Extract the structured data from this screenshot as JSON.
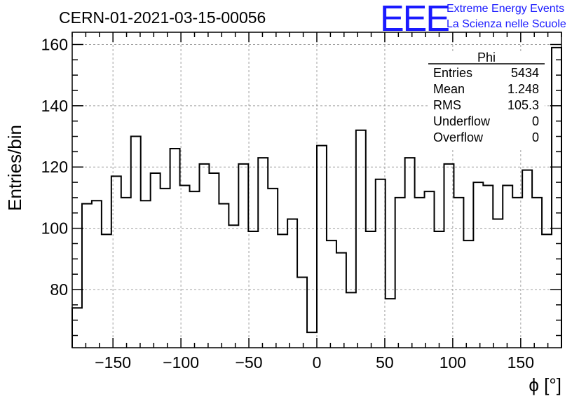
{
  "title": "CERN-01-2021-03-15-00056",
  "logo": {
    "mark": "EEE",
    "line1": "Extreme Energy Events",
    "line2": "La Scienza nelle Scuole",
    "color": "#1a1aff"
  },
  "stats_box": {
    "name": "Phi",
    "rows": [
      {
        "label": "Entries",
        "value": "5434"
      },
      {
        "label": "Mean",
        "value": "1.248"
      },
      {
        "label": "RMS",
        "value": "105.3"
      },
      {
        "label": "Underflow",
        "value": "0"
      },
      {
        "label": "Overflow",
        "value": "0"
      }
    ]
  },
  "chart_data": {
    "type": "histogram",
    "title": "CERN-01-2021-03-15-00056",
    "xlabel": "ϕ [°]",
    "ylabel": "Entries/bin",
    "xlim": [
      -180,
      180
    ],
    "ylim": [
      61,
      164
    ],
    "grid": true,
    "bin_width": 7.2,
    "bin_edges_start": -180,
    "values": [
      74,
      108,
      109,
      98,
      117,
      110,
      130,
      109,
      118,
      113,
      126,
      114,
      112,
      121,
      118,
      108,
      101,
      121,
      99,
      123,
      113,
      98,
      103,
      84,
      66,
      127,
      96,
      92,
      79,
      132,
      99,
      116,
      77,
      110,
      123,
      110,
      112,
      99,
      121,
      110,
      96,
      115,
      114,
      103,
      114,
      110,
      119,
      110,
      98,
      159
    ],
    "xticks": [
      -150,
      -100,
      -50,
      0,
      50,
      100,
      150
    ],
    "xtick_labels": [
      "−150",
      "−100",
      "−50",
      "0",
      "50",
      "100",
      "150"
    ],
    "yticks": [
      80,
      100,
      120,
      140,
      160
    ],
    "ytick_labels": [
      "80",
      "100",
      "120",
      "140",
      "160"
    ],
    "line_color": "#000000",
    "grid_color": "#a0a0a0"
  }
}
